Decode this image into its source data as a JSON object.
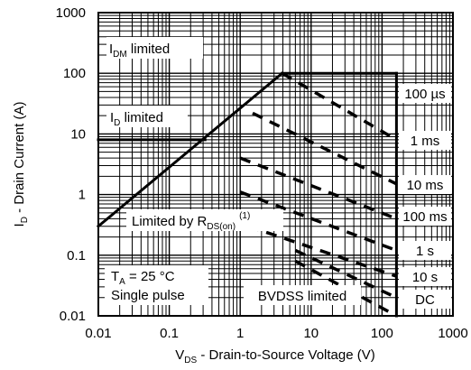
{
  "chart_data": {
    "type": "line",
    "title": "",
    "xlabel": {
      "prefix": "V",
      "sub": "DS",
      "suffix": " - Drain-to-Source Voltage (V)"
    },
    "ylabel": {
      "prefix": "I",
      "sub": "D",
      "suffix": " - Drain Current (A)"
    },
    "xscale": "log",
    "yscale": "log",
    "xlim": [
      0.01,
      1000
    ],
    "ylim": [
      0.01,
      1000
    ],
    "grid": true,
    "x_ticks": [
      "0.01",
      "0.1",
      "1",
      "10",
      "100",
      "1000"
    ],
    "y_ticks": [
      "0.01",
      "0.1",
      "1",
      "10",
      "100",
      "1000"
    ],
    "colors": {
      "line": "#000000",
      "background": "#ffffff",
      "grid": "#000000"
    },
    "boundary_series": [
      {
        "name": "IDM limited",
        "points": [
          [
            3.9,
            100
          ],
          [
            160,
            100
          ]
        ]
      },
      {
        "name": "ID limited",
        "points": [
          [
            0.01,
            8
          ],
          [
            0.32,
            8
          ]
        ]
      },
      {
        "name": "RDS(on) limit",
        "points": [
          [
            0.01,
            0.3
          ],
          [
            3.9,
            100
          ]
        ]
      },
      {
        "name": "BVDSS limit",
        "points": [
          [
            160,
            0.01
          ],
          [
            160,
            100
          ]
        ]
      }
    ],
    "pulse_series": [
      {
        "name": "100 µs",
        "points": [
          [
            3.9,
            100
          ],
          [
            160,
            8
          ]
        ]
      },
      {
        "name": "1 ms",
        "points": [
          [
            1.5,
            22
          ],
          [
            160,
            1.5
          ]
        ]
      },
      {
        "name": "10 ms",
        "points": [
          [
            1.0,
            4
          ],
          [
            160,
            0.4
          ]
        ]
      },
      {
        "name": "100 ms",
        "points": [
          [
            1.0,
            1.1
          ],
          [
            160,
            0.12
          ]
        ]
      },
      {
        "name": "1 s",
        "points": [
          [
            1.3,
            0.3
          ],
          [
            160,
            0.045
          ]
        ]
      },
      {
        "name": "10 s",
        "points": [
          [
            6,
            0.12
          ],
          [
            160,
            0.02
          ]
        ]
      },
      {
        "name": "DC",
        "points": [
          [
            6,
            0.08
          ],
          [
            160,
            0.01
          ]
        ]
      }
    ]
  },
  "annotations": {
    "idm": {
      "prefix": "I",
      "sub": "DM",
      "suffix": " limited"
    },
    "id": {
      "prefix": "I",
      "sub": "D",
      "suffix": " limited"
    },
    "rds": {
      "prefix": "Limited by R",
      "sub": "DS(on)",
      "sup": "(1)"
    },
    "ta": {
      "prefix": "T",
      "sub": "A",
      "suffix": " = 25 °C"
    },
    "single_pulse": "Single pulse",
    "bvdss": "BVDSS limited",
    "pulse_labels": [
      "100 µs",
      "1 ms",
      "10 ms",
      "100 ms",
      "1 s",
      "10 s",
      "DC"
    ]
  }
}
